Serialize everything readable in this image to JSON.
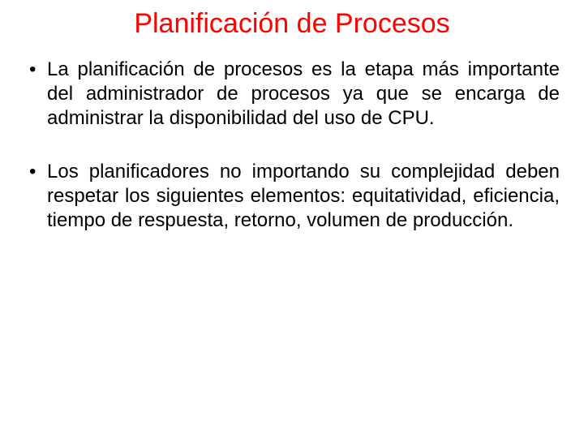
{
  "slide": {
    "title": "Planificación de Procesos",
    "title_color": "#ff0000",
    "title_fontsize": 34,
    "body_color": "#000000",
    "body_fontsize": 24,
    "background_color": "#ffffff",
    "bullets": [
      "La planificación de procesos es la etapa más importante del administrador de procesos ya que se encarga de administrar la disponibilidad del uso de CPU.",
      "Los planificadores no importando su complejidad deben respetar los siguientes elementos:  equitatividad, eficiencia, tiempo de respuesta, retorno, volumen de producción."
    ]
  }
}
